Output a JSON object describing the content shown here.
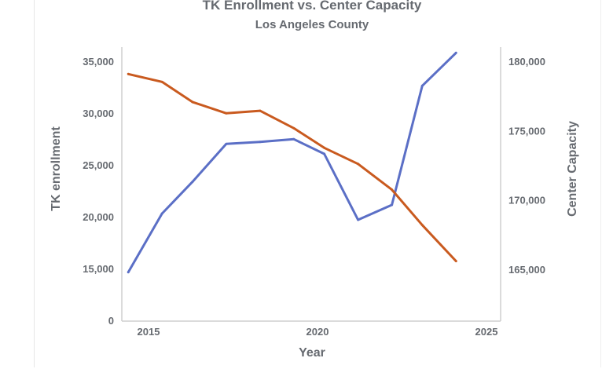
{
  "chart_data": {
    "type": "line",
    "title": "TK Enrollment vs. Center Capacity",
    "subtitle": "Los Angeles County",
    "xlabel": "Year",
    "ylabel_left": "TK enrollment",
    "ylabel_right": "Center Capacity",
    "xticks": [
      2015,
      2020,
      2025
    ],
    "xtick_labels": [
      "2015",
      "2020",
      "2025"
    ],
    "yticks_left": [
      0,
      15000,
      20000,
      25000,
      30000,
      35000
    ],
    "ytick_labels_left": [
      "0",
      "15,000",
      "20,000",
      "25,000",
      "30,000",
      "35,000"
    ],
    "yticks_right": [
      165000,
      170000,
      175000,
      180000
    ],
    "ytick_labels_right": [
      "165,000",
      "170,000",
      "175,000",
      "180,000"
    ],
    "grid": false,
    "legend": "none",
    "x": [
      2014.4,
      2015.4,
      2016.3,
      2017.3,
      2018.3,
      2019.3,
      2020.2,
      2021.2,
      2022.2,
      2023.1,
      2024.1
    ],
    "series": [
      {
        "axis": "left",
        "color": "#5b6fc6",
        "values": [
          14640,
          20300,
          23360,
          27020,
          27220,
          27480,
          26060,
          19700,
          21140,
          32630,
          35810
        ]
      },
      {
        "axis": "right",
        "color": "#c95a1f",
        "values": [
          179080,
          178510,
          177060,
          176250,
          176430,
          175170,
          173760,
          172600,
          170740,
          168190,
          165590
        ]
      }
    ]
  }
}
